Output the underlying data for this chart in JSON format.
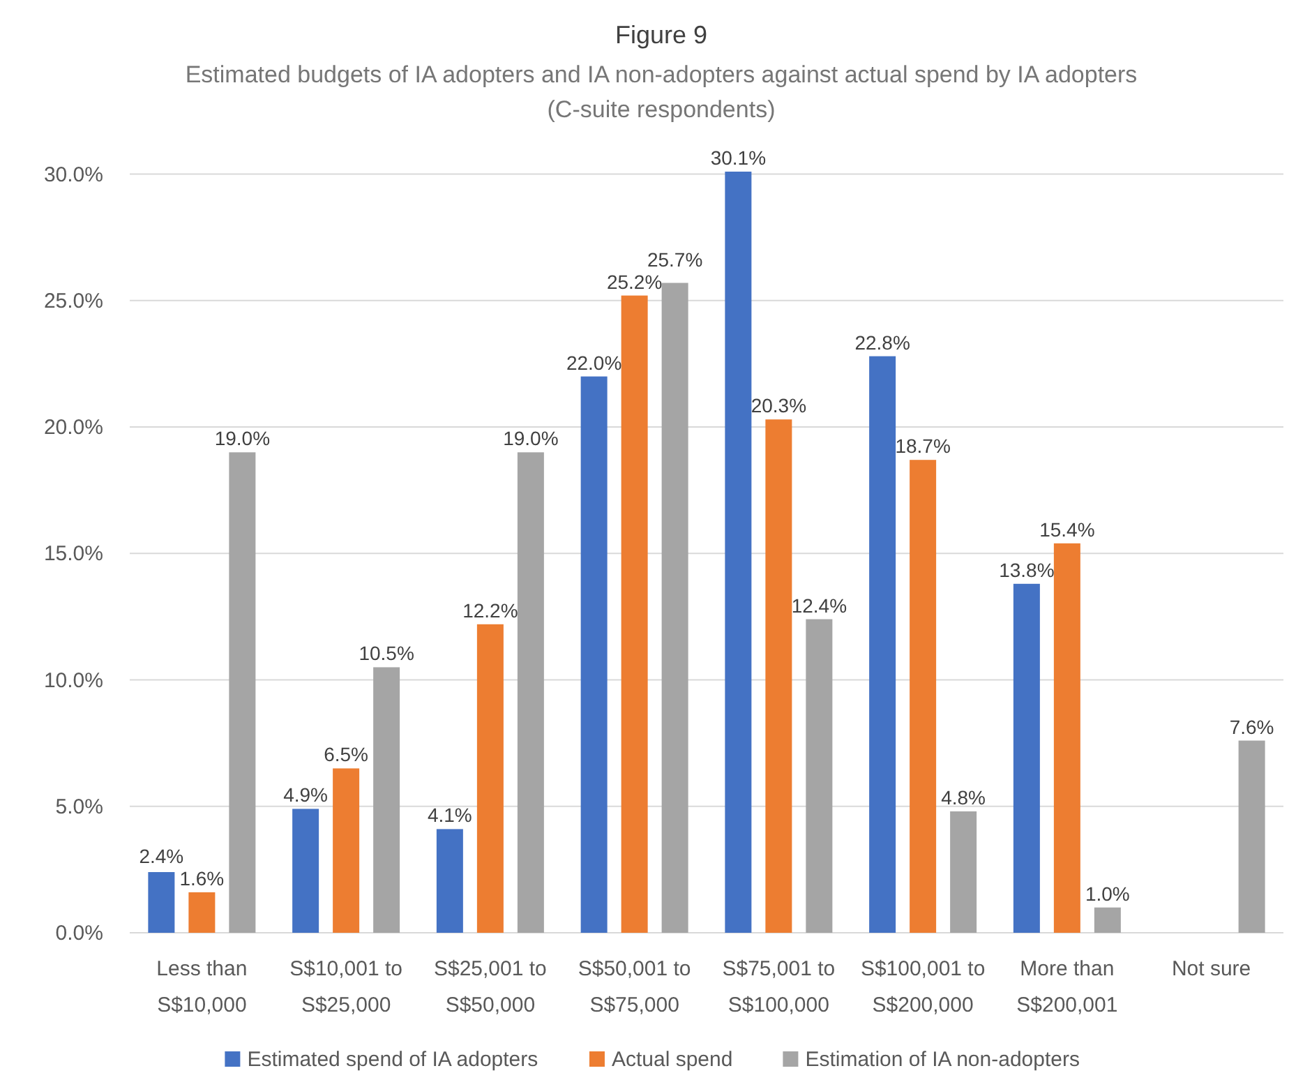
{
  "chart_data": {
    "type": "bar",
    "title": "Figure 9",
    "subtitle": "Estimated budgets of IA adopters and IA non-adopters against actual spend by IA adopters (C-suite respondents)",
    "categories": [
      "Less than S$10,000",
      "S$10,001 to S$25,000",
      "S$25,001 to S$50,000",
      "S$50,001 to S$75,000",
      "S$75,001 to S$100,000",
      "S$100,001 to S$200,000",
      "More than S$200,001",
      "Not sure"
    ],
    "series": [
      {
        "name": "Estimated spend of IA adopters",
        "color": "#4472c4",
        "values": [
          2.4,
          4.9,
          4.1,
          22.0,
          30.1,
          22.8,
          13.8,
          null
        ],
        "value_labels": [
          "2.4%",
          "4.9%",
          "4.1%",
          "22.0%",
          "30.1%",
          "22.8%",
          "13.8%",
          null
        ]
      },
      {
        "name": "Actual spend",
        "color": "#ed7d31",
        "values": [
          1.6,
          6.5,
          12.2,
          25.2,
          20.3,
          18.7,
          15.4,
          null
        ],
        "value_labels": [
          "1.6%",
          "6.5%",
          "12.2%",
          "25.2%",
          "20.3%",
          "18.7%",
          "15.4%",
          null
        ]
      },
      {
        "name": "Estimation of IA non-adopters",
        "color": "#a5a5a5",
        "values": [
          19.0,
          10.5,
          19.0,
          25.7,
          12.4,
          4.8,
          1.0,
          7.6
        ],
        "value_labels": [
          "19.0%",
          "10.5%",
          "19.0%",
          "25.7%",
          "12.4%",
          "4.8%",
          "1.0%",
          "7.6%"
        ]
      }
    ],
    "ylim": [
      0,
      30.1
    ],
    "yticks": [
      {
        "value": 0,
        "label": "0.0%"
      },
      {
        "value": 5,
        "label": "5.0%"
      },
      {
        "value": 10,
        "label": "10.0%"
      },
      {
        "value": 15,
        "label": "15.0%"
      },
      {
        "value": 20,
        "label": "20.0%"
      },
      {
        "value": 25,
        "label": "25.0%"
      },
      {
        "value": 30,
        "label": "30.0%"
      }
    ],
    "grid": "y",
    "legend": "bottom"
  }
}
